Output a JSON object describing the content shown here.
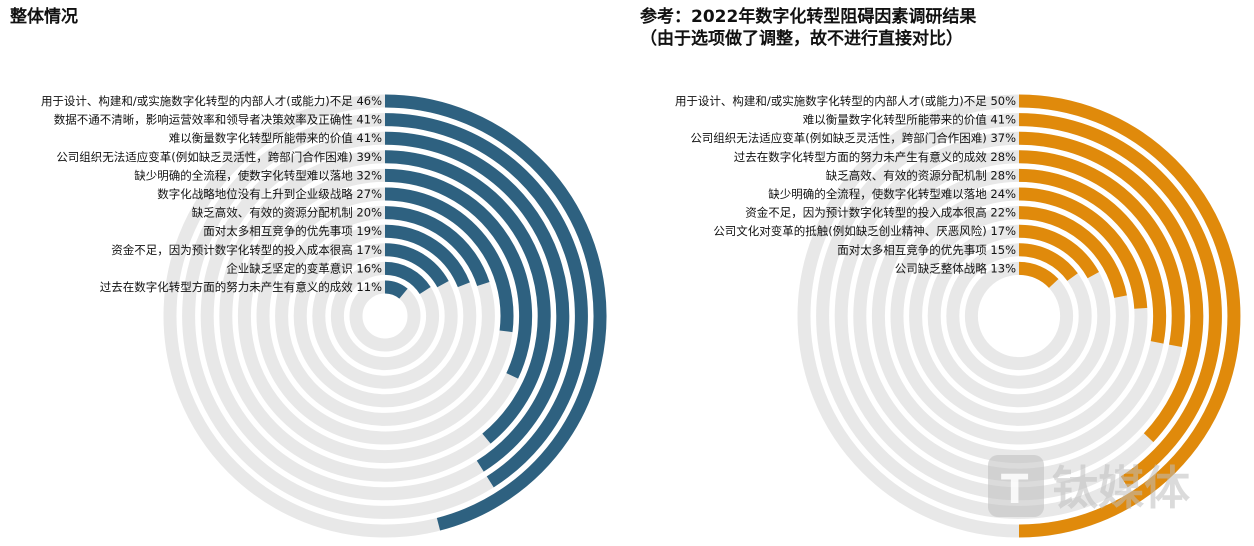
{
  "left_title": "整体情况",
  "right_title_line1": "参考：2022年数字化转型阻碍因素调研结果",
  "right_title_line2": "（由于选项做了调整，故不进行直接对比）",
  "watermark": "钛媒体",
  "colors": {
    "left": "#2e6180",
    "right": "#e08a0b",
    "track": "#e8e8e8"
  },
  "chart_data": [
    {
      "type": "radial-bar",
      "title": "整体情况",
      "scale_max_pct": 100,
      "categories": [
        "用于设计、构建和/或实施数字化转型的内部人才(或能力)不足",
        "数据不通不清晰，影响运营效率和领导者决策效率及正确性",
        "难以衡量数字化转型所能带来的价值",
        "公司组织无法适应变革(例如缺乏灵活性，跨部门合作困难)",
        "缺少明确的全流程，使数字化转型难以落地",
        "数字化战略地位没有上升到企业级战略",
        "缺乏高效、有效的资源分配机制",
        "面对太多相互竞争的优先事项",
        "资金不足，因为预计数字化转型的投入成本很高",
        "企业缺乏坚定的变革意识",
        "过去在数字化转型方面的努力未产生有意义的成效"
      ],
      "values": [
        46,
        41,
        41,
        39,
        32,
        27,
        20,
        19,
        17,
        16,
        11
      ],
      "value_labels": [
        "46%",
        "41%",
        "41%",
        "39%",
        "32%",
        "27%",
        "20%",
        "19%",
        "17%",
        "16%",
        "11%"
      ]
    },
    {
      "type": "radial-bar",
      "title": "参考：2022年数字化转型阻碍因素调研结果",
      "scale_max_pct": 100,
      "categories": [
        "用于设计、构建和/或实施数字化转型的内部人才(或能力)不足",
        "难以衡量数字化转型所能带来的价值",
        "公司组织无法适应变革(例如缺乏灵活性，跨部门合作困难)",
        "过去在数字化转型方面的努力未产生有意义的成效",
        "缺乏高效、有效的资源分配机制",
        "缺少明确的全流程，使数字化转型难以落地",
        "资金不足，因为预计数字化转型的投入成本很高",
        "公司文化对变革的抵触(例如缺乏创业精神、厌恶风险)",
        "面对太多相互竞争的优先事项",
        "公司缺乏整体战略"
      ],
      "values": [
        50,
        41,
        37,
        28,
        28,
        24,
        22,
        17,
        15,
        13
      ],
      "value_labels": [
        "50%",
        "41%",
        "37%",
        "28%",
        "28%",
        "24%",
        "22%",
        "17%",
        "15%",
        "13%"
      ]
    }
  ]
}
